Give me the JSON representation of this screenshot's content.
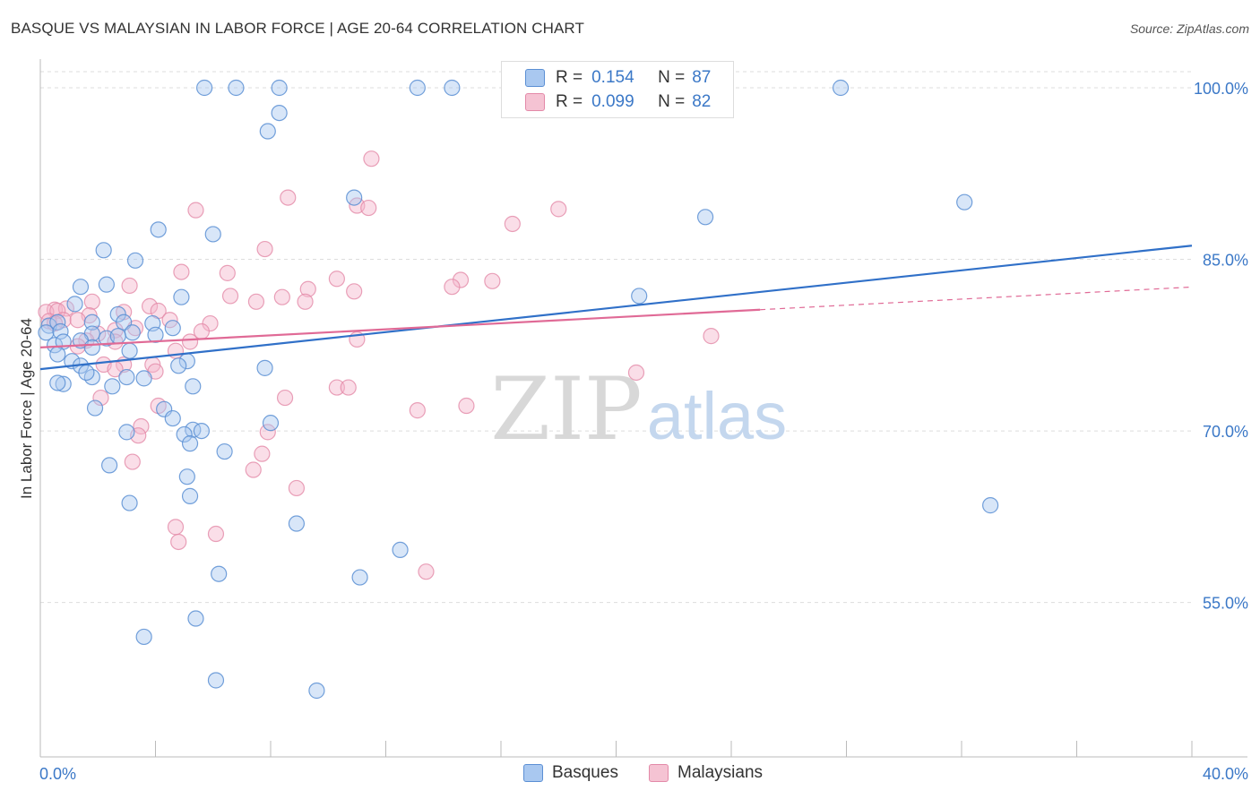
{
  "title": "BASQUE VS MALAYSIAN IN LABOR FORCE | AGE 20-64 CORRELATION CHART",
  "source": "Source: ZipAtlas.com",
  "watermark": {
    "zip": "ZIP",
    "atlas": "atlas"
  },
  "legend": {
    "rows": [
      {
        "r_label": "R =",
        "r_value": "0.154",
        "n_label": "N =",
        "n_value": "87"
      },
      {
        "r_label": "R =",
        "r_value": "0.099",
        "n_label": "N =",
        "n_value": "82"
      }
    ]
  },
  "colors": {
    "basque_fill": "#a9c8f0",
    "basque_stroke": "#5b8fd4",
    "basque_line": "#3070c8",
    "malay_fill": "#f5b6cb",
    "malay_stroke": "#e389a8",
    "malay_line": "#e06a96",
    "tick_label": "#3b78c7",
    "grid": "#dddddd"
  },
  "chart_data": {
    "type": "scatter",
    "title": "BASQUE VS MALAYSIAN IN LABOR FORCE | AGE 20-64 CORRELATION CHART",
    "xlabel": "",
    "ylabel": "In Labor Force | Age 20-64",
    "xlim": [
      0,
      40
    ],
    "ylim": [
      40,
      102
    ],
    "x_tick_labels": [
      "0.0%",
      "40.0%"
    ],
    "y_ticks": [
      55,
      70,
      85,
      100
    ],
    "y_tick_labels": [
      "55.0%",
      "70.0%",
      "85.0%",
      "100.0%"
    ],
    "grid": true,
    "legend_position": "top-center",
    "series": [
      {
        "name": "Basques",
        "trend": {
          "x0": 0,
          "y0": 75.4,
          "x1": 40,
          "y1": 86.2
        },
        "points": [
          [
            5.7,
            100
          ],
          [
            6.8,
            100
          ],
          [
            8.3,
            100
          ],
          [
            13.1,
            100
          ],
          [
            14.3,
            100
          ],
          [
            27.8,
            100
          ],
          [
            8.3,
            97.8
          ],
          [
            7.9,
            96.2
          ],
          [
            10.9,
            90.4
          ],
          [
            32.1,
            90.0
          ],
          [
            23.1,
            88.7
          ],
          [
            4.1,
            87.6
          ],
          [
            6.0,
            87.2
          ],
          [
            2.2,
            85.8
          ],
          [
            3.3,
            84.9
          ],
          [
            2.3,
            82.8
          ],
          [
            1.4,
            82.6
          ],
          [
            4.9,
            81.7
          ],
          [
            20.8,
            81.8
          ],
          [
            1.2,
            81.1
          ],
          [
            2.7,
            80.2
          ],
          [
            0.3,
            79.2
          ],
          [
            0.6,
            79.5
          ],
          [
            1.8,
            79.5
          ],
          [
            2.9,
            79.5
          ],
          [
            0.2,
            78.6
          ],
          [
            3.2,
            78.6
          ],
          [
            3.9,
            79.4
          ],
          [
            4.6,
            79.0
          ],
          [
            0.7,
            78.7
          ],
          [
            1.8,
            78.5
          ],
          [
            2.3,
            78.1
          ],
          [
            4.0,
            78.4
          ],
          [
            2.7,
            78.3
          ],
          [
            0.5,
            77.5
          ],
          [
            0.8,
            77.8
          ],
          [
            1.4,
            77.9
          ],
          [
            0.6,
            76.7
          ],
          [
            1.8,
            77.3
          ],
          [
            3.1,
            77.0
          ],
          [
            5.1,
            76.1
          ],
          [
            1.1,
            76.1
          ],
          [
            1.4,
            75.7
          ],
          [
            4.8,
            75.7
          ],
          [
            7.8,
            75.5
          ],
          [
            1.8,
            74.7
          ],
          [
            3.0,
            74.7
          ],
          [
            3.6,
            74.6
          ],
          [
            1.6,
            75.1
          ],
          [
            0.8,
            74.1
          ],
          [
            0.6,
            74.2
          ],
          [
            2.5,
            73.9
          ],
          [
            5.3,
            73.9
          ],
          [
            1.9,
            72.0
          ],
          [
            4.3,
            71.9
          ],
          [
            4.6,
            71.1
          ],
          [
            8.0,
            70.7
          ],
          [
            3.0,
            69.9
          ],
          [
            5.3,
            70.1
          ],
          [
            5.6,
            70.0
          ],
          [
            5.0,
            69.7
          ],
          [
            5.2,
            68.9
          ],
          [
            6.4,
            68.2
          ],
          [
            2.4,
            67.0
          ],
          [
            5.1,
            66.0
          ],
          [
            5.2,
            64.3
          ],
          [
            3.1,
            63.7
          ],
          [
            8.9,
            61.9
          ],
          [
            12.5,
            59.6
          ],
          [
            6.2,
            57.5
          ],
          [
            11.1,
            57.2
          ],
          [
            33.0,
            63.5
          ],
          [
            5.4,
            53.6
          ],
          [
            3.6,
            52.0
          ],
          [
            6.1,
            48.2
          ],
          [
            9.6,
            47.3
          ]
        ]
      },
      {
        "name": "Malaysians",
        "trend": {
          "x0": 0,
          "y0": 77.3,
          "x1": 25,
          "y1": 80.6
        },
        "points": [
          [
            11.5,
            93.8
          ],
          [
            8.6,
            90.4
          ],
          [
            11.0,
            89.7
          ],
          [
            11.4,
            89.5
          ],
          [
            5.4,
            89.3
          ],
          [
            18.0,
            89.4
          ],
          [
            16.4,
            88.1
          ],
          [
            7.8,
            85.9
          ],
          [
            4.9,
            83.9
          ],
          [
            6.5,
            83.8
          ],
          [
            10.3,
            83.3
          ],
          [
            14.6,
            83.2
          ],
          [
            15.7,
            83.1
          ],
          [
            14.3,
            82.6
          ],
          [
            9.3,
            82.4
          ],
          [
            3.1,
            82.7
          ],
          [
            10.9,
            82.2
          ],
          [
            6.6,
            81.8
          ],
          [
            7.5,
            81.3
          ],
          [
            8.4,
            81.7
          ],
          [
            9.2,
            81.3
          ],
          [
            1.8,
            81.3
          ],
          [
            3.8,
            80.9
          ],
          [
            4.1,
            80.5
          ],
          [
            0.5,
            80.6
          ],
          [
            0.9,
            80.7
          ],
          [
            0.2,
            80.4
          ],
          [
            0.6,
            80.5
          ],
          [
            1.7,
            80.1
          ],
          [
            2.9,
            80.4
          ],
          [
            0.8,
            79.7
          ],
          [
            1.3,
            79.7
          ],
          [
            4.5,
            79.7
          ],
          [
            5.9,
            79.4
          ],
          [
            3.3,
            79.0
          ],
          [
            0.3,
            79.6
          ],
          [
            0.5,
            79.4
          ],
          [
            2.6,
            78.8
          ],
          [
            5.6,
            78.7
          ],
          [
            2.0,
            78.5
          ],
          [
            1.6,
            77.9
          ],
          [
            2.6,
            77.8
          ],
          [
            5.2,
            77.8
          ],
          [
            11.0,
            78.0
          ],
          [
            23.3,
            78.3
          ],
          [
            1.3,
            77.4
          ],
          [
            4.7,
            77.0
          ],
          [
            2.2,
            75.8
          ],
          [
            2.9,
            75.8
          ],
          [
            3.9,
            75.8
          ],
          [
            4.0,
            75.2
          ],
          [
            2.6,
            75.4
          ],
          [
            20.7,
            75.1
          ],
          [
            10.3,
            73.8
          ],
          [
            10.7,
            73.8
          ],
          [
            8.5,
            72.9
          ],
          [
            14.8,
            72.2
          ],
          [
            13.1,
            71.8
          ],
          [
            4.1,
            72.2
          ],
          [
            2.1,
            72.9
          ],
          [
            3.5,
            70.4
          ],
          [
            3.4,
            69.6
          ],
          [
            7.9,
            69.9
          ],
          [
            7.7,
            68.0
          ],
          [
            3.2,
            67.3
          ],
          [
            7.4,
            66.6
          ],
          [
            8.9,
            65.0
          ],
          [
            4.7,
            61.6
          ],
          [
            6.1,
            61.0
          ],
          [
            4.8,
            60.3
          ],
          [
            13.4,
            57.7
          ]
        ]
      }
    ]
  },
  "bottom_legend": [
    {
      "label": "Basques"
    },
    {
      "label": "Malaysians"
    }
  ]
}
